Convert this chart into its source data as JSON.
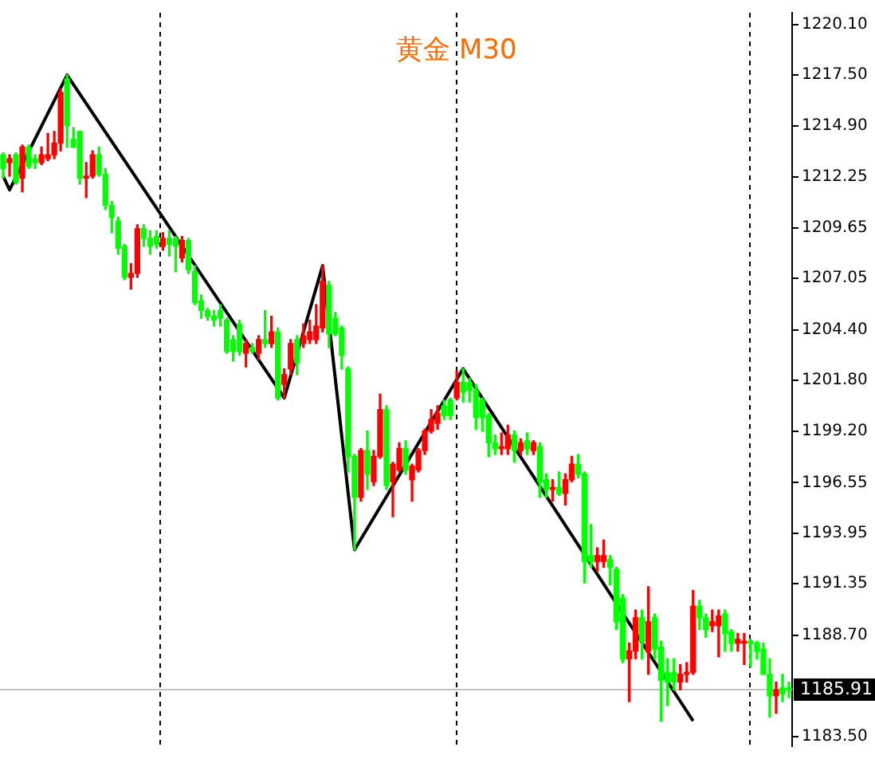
{
  "chart_data": {
    "type": "candlestick",
    "title": "黄金 M30",
    "categories": [
      null,
      null,
      null,
      null,
      null,
      null,
      null,
      null,
      null,
      null,
      null,
      null,
      null,
      null,
      null,
      null,
      null,
      null,
      null,
      null,
      null,
      null,
      null,
      null,
      null,
      null,
      null,
      null,
      null,
      null,
      null,
      null,
      null,
      null,
      null,
      null,
      null,
      null,
      null,
      null,
      null,
      null,
      null,
      null,
      null,
      null,
      null,
      null,
      null,
      null,
      null,
      null,
      null,
      null,
      null,
      null,
      null,
      null,
      null,
      null,
      null,
      null,
      null,
      null,
      null,
      null,
      null,
      null,
      null,
      null,
      null,
      null,
      null,
      null,
      null,
      null,
      null,
      null,
      null,
      null,
      null,
      null,
      null,
      null,
      null,
      null,
      null,
      null,
      null,
      null,
      null,
      null,
      null,
      null,
      null,
      null,
      null,
      null,
      null,
      null,
      null,
      null,
      null,
      null,
      null,
      null,
      null,
      null,
      null,
      null,
      null,
      null,
      null,
      null,
      null,
      null,
      null,
      null,
      null,
      null,
      null,
      null,
      null,
      null
    ],
    "ohlc": [
      [
        1213.4,
        1213.5,
        1212.2,
        1212.7
      ],
      [
        1213.0,
        1213.4,
        1212.3,
        1213.2
      ],
      [
        1213.4,
        1213.5,
        1211.9,
        1212.0
      ],
      [
        1212.2,
        1213.9,
        1211.5,
        1213.8
      ],
      [
        1213.8,
        1213.9,
        1212.7,
        1212.8
      ],
      [
        1213.2,
        1213.4,
        1212.7,
        1213.0
      ],
      [
        1213.0,
        1213.8,
        1212.9,
        1213.4
      ],
      [
        1213.2,
        1214.5,
        1213.1,
        1213.4
      ],
      [
        1213.4,
        1214.6,
        1213.2,
        1214.0
      ],
      [
        1214.0,
        1216.8,
        1213.6,
        1216.6
      ],
      [
        1217.3,
        1217.5,
        1213.8,
        1214.9
      ],
      [
        1214.2,
        1214.8,
        1213.8,
        1213.8
      ],
      [
        1214.6,
        1214.6,
        1211.9,
        1212.2
      ],
      [
        1212.2,
        1213.0,
        1211.2,
        1212.3
      ],
      [
        1212.3,
        1213.6,
        1212.2,
        1213.4
      ],
      [
        1213.4,
        1213.8,
        1212.3,
        1212.4
      ],
      [
        1212.4,
        1212.7,
        1210.6,
        1210.8
      ],
      [
        1210.8,
        1211.0,
        1209.4,
        1210.2
      ],
      [
        1210.0,
        1210.2,
        1208.3,
        1208.6
      ],
      [
        1208.7,
        1208.8,
        1207.0,
        1207.1
      ],
      [
        1207.1,
        1207.8,
        1206.5,
        1207.3
      ],
      [
        1207.3,
        1209.8,
        1207.1,
        1209.6
      ],
      [
        1209.6,
        1209.8,
        1208.7,
        1209.1
      ],
      [
        1209.1,
        1209.5,
        1208.3,
        1208.7
      ],
      [
        1209.2,
        1209.5,
        1208.6,
        1208.8
      ],
      [
        1208.7,
        1209.4,
        1208.5,
        1209.1
      ],
      [
        1209.1,
        1209.5,
        1208.2,
        1208.8
      ],
      [
        1209.1,
        1209.2,
        1207.4,
        1208.7
      ],
      [
        1208.1,
        1209.2,
        1207.9,
        1209.0
      ],
      [
        1209.0,
        1209.1,
        1207.3,
        1207.5
      ],
      [
        1207.4,
        1207.7,
        1205.7,
        1205.8
      ],
      [
        1205.9,
        1206.2,
        1205.0,
        1205.4
      ],
      [
        1205.4,
        1205.5,
        1204.9,
        1205.1
      ],
      [
        1205.1,
        1205.4,
        1204.6,
        1204.9
      ],
      [
        1205.4,
        1205.7,
        1204.6,
        1205.0
      ],
      [
        1204.9,
        1205.0,
        1203.2,
        1203.3
      ],
      [
        1203.9,
        1204.1,
        1202.8,
        1203.3
      ],
      [
        1204.7,
        1204.9,
        1203.1,
        1203.3
      ],
      [
        1203.2,
        1203.9,
        1202.5,
        1203.7
      ],
      [
        1203.5,
        1203.7,
        1203.2,
        1203.3
      ],
      [
        1203.2,
        1204.1,
        1202.9,
        1203.9
      ],
      [
        1203.9,
        1205.4,
        1203.5,
        1203.7
      ],
      [
        1203.7,
        1205.1,
        1203.5,
        1204.3
      ],
      [
        1204.3,
        1204.5,
        1200.8,
        1200.9
      ],
      [
        1201.6,
        1202.4,
        1200.9,
        1202.1
      ],
      [
        1202.4,
        1203.9,
        1202.1,
        1203.7
      ],
      [
        1203.9,
        1204.1,
        1202.1,
        1202.7
      ],
      [
        1203.7,
        1204.7,
        1203.5,
        1204.1
      ],
      [
        1203.9,
        1204.9,
        1203.7,
        1204.3
      ],
      [
        1203.9,
        1205.7,
        1203.7,
        1204.6
      ],
      [
        1204.5,
        1207.7,
        1204.3,
        1206.9
      ],
      [
        1206.7,
        1206.9,
        1203.5,
        1204.2
      ],
      [
        1205.0,
        1205.3,
        1204.1,
        1204.2
      ],
      [
        1204.5,
        1204.6,
        1202.4,
        1203.1
      ],
      [
        1202.4,
        1202.5,
        1197.1,
        1197.9
      ],
      [
        1197.9,
        1198.0,
        1193.1,
        1195.8
      ],
      [
        1195.8,
        1198.3,
        1195.6,
        1198.2
      ],
      [
        1198.2,
        1199.2,
        1196.2,
        1197.0
      ],
      [
        1196.6,
        1198.2,
        1196.4,
        1197.9
      ],
      [
        1197.9,
        1201.1,
        1197.8,
        1200.3
      ],
      [
        1200.3,
        1200.5,
        1196.2,
        1196.4
      ],
      [
        1196.6,
        1197.6,
        1194.8,
        1197.5
      ],
      [
        1197.2,
        1198.6,
        1197.1,
        1198.3
      ],
      [
        1198.3,
        1198.7,
        1197.0,
        1197.2
      ],
      [
        1196.7,
        1197.5,
        1195.6,
        1197.4
      ],
      [
        1197.2,
        1198.3,
        1197.1,
        1198.2
      ],
      [
        1198.2,
        1199.3,
        1198.0,
        1199.2
      ],
      [
        1199.2,
        1200.3,
        1199.1,
        1199.8
      ],
      [
        1199.6,
        1200.5,
        1199.3,
        1200.1
      ],
      [
        1200.5,
        1200.8,
        1199.8,
        1200.0
      ],
      [
        1200.8,
        1200.9,
        1199.8,
        1200.0
      ],
      [
        1200.9,
        1202.3,
        1200.8,
        1201.7
      ],
      [
        1201.7,
        1202.4,
        1200.7,
        1201.2
      ],
      [
        1201.7,
        1201.9,
        1200.7,
        1201.3
      ],
      [
        1201.3,
        1201.6,
        1199.3,
        1199.9
      ],
      [
        1200.8,
        1200.9,
        1199.2,
        1199.9
      ],
      [
        1200.0,
        1200.1,
        1197.9,
        1198.6
      ],
      [
        1198.6,
        1199.0,
        1198.0,
        1198.3
      ],
      [
        1198.3,
        1199.1,
        1198.0,
        1198.4
      ],
      [
        1198.3,
        1199.5,
        1198.0,
        1199.0
      ],
      [
        1199.0,
        1199.2,
        1197.6,
        1198.2
      ],
      [
        1198.2,
        1198.8,
        1198.0,
        1198.6
      ],
      [
        1198.7,
        1199.1,
        1198.0,
        1198.3
      ],
      [
        1198.2,
        1198.7,
        1198.0,
        1198.6
      ],
      [
        1198.4,
        1198.6,
        1195.8,
        1196.6
      ],
      [
        1196.7,
        1197.0,
        1195.8,
        1196.2
      ],
      [
        1196.2,
        1196.7,
        1195.6,
        1196.3
      ],
      [
        1196.3,
        1197.1,
        1195.9,
        1196.0
      ],
      [
        1196.0,
        1197.0,
        1195.4,
        1196.7
      ],
      [
        1196.7,
        1197.9,
        1196.6,
        1197.5
      ],
      [
        1197.5,
        1198.0,
        1196.8,
        1197.0
      ],
      [
        1197.0,
        1197.1,
        1191.4,
        1192.5
      ],
      [
        1192.8,
        1194.4,
        1192.2,
        1192.5
      ],
      [
        1192.5,
        1193.2,
        1192.0,
        1192.8
      ],
      [
        1192.5,
        1193.6,
        1192.2,
        1192.8
      ],
      [
        1192.6,
        1192.8,
        1191.3,
        1192.2
      ],
      [
        1192.1,
        1192.2,
        1189.0,
        1189.4
      ],
      [
        1190.6,
        1190.8,
        1187.3,
        1187.5
      ],
      [
        1187.5,
        1188.3,
        1185.3,
        1187.9
      ],
      [
        1187.9,
        1190.0,
        1187.5,
        1189.6
      ],
      [
        1189.6,
        1190.0,
        1187.5,
        1188.4
      ],
      [
        1187.9,
        1191.2,
        1186.7,
        1189.4
      ],
      [
        1189.6,
        1189.8,
        1187.5,
        1188.0
      ],
      [
        1188.1,
        1188.4,
        1184.3,
        1186.4
      ],
      [
        1186.8,
        1187.5,
        1185.1,
        1186.3
      ],
      [
        1186.8,
        1187.5,
        1185.9,
        1186.3
      ],
      [
        1186.3,
        1187.2,
        1185.9,
        1186.7
      ],
      [
        1186.7,
        1187.3,
        1186.3,
        1186.8
      ],
      [
        1186.8,
        1191.0,
        1186.7,
        1190.2
      ],
      [
        1190.2,
        1190.5,
        1189.0,
        1189.6
      ],
      [
        1189.6,
        1189.8,
        1188.6,
        1189.0
      ],
      [
        1189.2,
        1190.0,
        1188.9,
        1189.4
      ],
      [
        1189.2,
        1190.0,
        1187.6,
        1189.7
      ],
      [
        1189.8,
        1190.0,
        1187.9,
        1188.8
      ],
      [
        1188.9,
        1189.0,
        1187.9,
        1188.3
      ],
      [
        1188.3,
        1188.8,
        1187.9,
        1188.5
      ],
      [
        1188.3,
        1188.8,
        1187.2,
        1188.4
      ],
      [
        1188.4,
        1188.5,
        1187.1,
        1188.3
      ],
      [
        1188.3,
        1188.4,
        1187.5,
        1187.9
      ],
      [
        1188.0,
        1188.3,
        1186.7,
        1186.7
      ],
      [
        1186.7,
        1187.5,
        1184.5,
        1185.6
      ],
      [
        1185.6,
        1186.3,
        1184.7,
        1185.9
      ],
      [
        1186.0,
        1186.7,
        1185.3,
        1185.7
      ],
      [
        1186.0,
        1186.3,
        1185.5,
        1185.9
      ]
    ],
    "colors": [
      "#00ff00",
      "#ff0000",
      "#00ff00",
      "#ff0000",
      "#00ff00",
      "#00ff00",
      "#ff0000",
      "#ff0000",
      "#ff0000",
      "#ff0000",
      "#00ff00",
      "#00ff00",
      "#00ff00",
      "#ff0000",
      "#ff0000",
      "#00ff00",
      "#00ff00",
      "#00ff00",
      "#00ff00",
      "#00ff00",
      "#ff0000",
      "#ff0000",
      "#00ff00",
      "#00ff00",
      "#00ff00",
      "#ff0000",
      "#00ff00",
      "#00ff00",
      "#ff0000",
      "#00ff00",
      "#00ff00",
      "#00ff00",
      "#00ff00",
      "#00ff00",
      "#00ff00",
      "#00ff00",
      "#00ff00",
      "#00ff00",
      "#ff0000",
      "#00ff00",
      "#ff0000",
      "#00ff00",
      "#ff0000",
      "#00ff00",
      "#ff0000",
      "#ff0000",
      "#00ff00",
      "#ff0000",
      "#ff0000",
      "#ff0000",
      "#ff0000",
      "#00ff00",
      "#00ff00",
      "#00ff00",
      "#00ff00",
      "#00ff00",
      "#ff0000",
      "#00ff00",
      "#ff0000",
      "#ff0000",
      "#00ff00",
      "#ff0000",
      "#ff0000",
      "#00ff00",
      "#ff0000",
      "#ff0000",
      "#ff0000",
      "#ff0000",
      "#ff0000",
      "#00ff00",
      "#00ff00",
      "#ff0000",
      "#00ff00",
      "#00ff00",
      "#00ff00",
      "#00ff00",
      "#00ff00",
      "#00ff00",
      "#ff0000",
      "#ff0000",
      "#00ff00",
      "#ff0000",
      "#00ff00",
      "#ff0000",
      "#00ff00",
      "#00ff00",
      "#ff0000",
      "#00ff00",
      "#ff0000",
      "#ff0000",
      "#00ff00",
      "#00ff00",
      "#00ff00",
      "#ff0000",
      "#ff0000",
      "#00ff00",
      "#00ff00",
      "#00ff00",
      "#ff0000",
      "#ff0000",
      "#00ff00",
      "#ff0000",
      "#00ff00",
      "#00ff00",
      "#00ff00",
      "#00ff00",
      "#ff0000",
      "#ff0000",
      "#ff0000",
      "#00ff00",
      "#00ff00",
      "#ff0000",
      "#ff0000",
      "#00ff00",
      "#00ff00",
      "#ff0000",
      "#ff0000",
      "#00ff00",
      "#00ff00",
      "#00ff00",
      "#00ff00",
      "#ff0000",
      "#00ff00",
      "#00ff00"
    ],
    "series": [
      {
        "type": "line",
        "color": "#000000",
        "values": [
          1212.3,
          1211.6,
          null,
          null,
          null,
          null,
          null,
          null,
          null,
          null,
          1217.5,
          null,
          null,
          null,
          null,
          null,
          null,
          null,
          null,
          null,
          null,
          null,
          null,
          null,
          null,
          null,
          null,
          null,
          null,
          null,
          null,
          null,
          null,
          null,
          null,
          null,
          null,
          null,
          null,
          null,
          null,
          null,
          null,
          null,
          1200.9,
          null,
          null,
          null,
          null,
          null,
          1207.7,
          null,
          null,
          null,
          null,
          1193.1,
          null,
          null,
          null,
          null,
          null,
          null,
          null,
          null,
          null,
          null,
          null,
          null,
          null,
          null,
          null,
          null,
          1202.4,
          null,
          null,
          null,
          null,
          null,
          null,
          null,
          null,
          null,
          null,
          null,
          null,
          null,
          null,
          null,
          null,
          null,
          null,
          null,
          null,
          null,
          null,
          null,
          null,
          null,
          null,
          null,
          null,
          null,
          null,
          null,
          null,
          null,
          null,
          null,
          1184.3,
          null,
          null,
          null,
          null,
          null,
          null,
          null,
          null,
          null,
          null,
          null,
          null,
          null,
          null,
          null
        ]
      }
    ],
    "ylim": [
      1183.0,
      1220.7
    ],
    "yticks": [
      {
        "value": 1220.1,
        "label": "1220.10"
      },
      {
        "value": 1217.5,
        "label": "1217.50"
      },
      {
        "value": 1214.9,
        "label": "1214.90"
      },
      1212.25,
      1209.65,
      1207.05,
      {
        "value": 1204.4,
        "label": "1204.40"
      },
      {
        "value": 1201.8,
        "label": "1201.80"
      },
      {
        "value": 1199.2,
        "label": "1199.20"
      },
      1196.55,
      1193.95,
      1191.35,
      {
        "value": 1188.7,
        "label": "1188.70"
      },
      {
        "value": 1183.5,
        "label": "1183.50"
      }
    ],
    "ref_lines": [
      {
        "axis": "y",
        "value": 1185.91,
        "label": "1185.91",
        "color": "#c0c0c0"
      }
    ],
    "grid": false,
    "legend": false,
    "tick_labels": "y",
    "marker": "none",
    "line_style": "solid"
  }
}
